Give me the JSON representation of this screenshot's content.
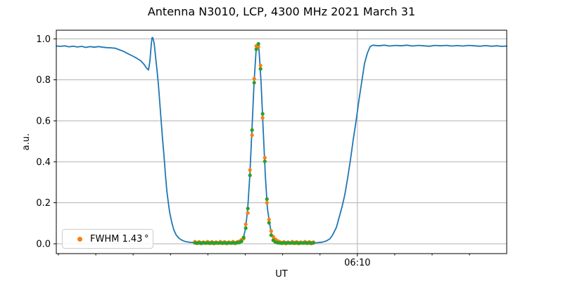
{
  "figure": {
    "title": "Antenna N3010, LCP, 4300 MHz 2021 March 31",
    "xlabel": "UT",
    "ylabel": "a.u.",
    "legend": {
      "label": "FWHM 1.43 °",
      "marker_color": "#ff7f0e"
    }
  },
  "chart_data": {
    "type": "line",
    "title": "Antenna N3010, LCP, 4300 MHz 2021 March 31",
    "xlabel": "UT",
    "ylabel": "a.u.",
    "ylim": [
      -0.048,
      1.042
    ],
    "grid": true,
    "legend_position": "lower left",
    "legend_entries": [
      "FWHM 1.43 °"
    ],
    "colors": {
      "grid": "#b0b0b0",
      "spine": "#000000",
      "line": "#1f77b4",
      "data": "#ff7f0e",
      "fit": "#2ca02c"
    },
    "y_ticks": [
      {
        "value": 0.0,
        "label": "0.0"
      },
      {
        "value": 0.2,
        "label": "0.2"
      },
      {
        "value": 0.4,
        "label": "0.4"
      },
      {
        "value": 0.6,
        "label": "0.6"
      },
      {
        "value": 0.8,
        "label": "0.8"
      },
      {
        "value": 1.0,
        "label": "1.0"
      }
    ],
    "x_axis": {
      "unit": "fraction of x-range (only one labeled time tick visible)",
      "major_ticks": [
        {
          "pos": 0.6684,
          "label": "06:10"
        }
      ],
      "minor_tick_positions": [
        0.0047,
        0.0877,
        0.1706,
        0.2536,
        0.3366,
        0.4195,
        0.5025,
        0.5855,
        0.7514,
        0.8344,
        0.9173
      ]
    },
    "series": [
      {
        "name": "drift-scan-response",
        "type": "line",
        "color": "#1f77b4",
        "points": [
          [
            0.0,
            0.965
          ],
          [
            0.0094,
            0.963
          ],
          [
            0.0188,
            0.966
          ],
          [
            0.0281,
            0.961
          ],
          [
            0.0375,
            0.964
          ],
          [
            0.0469,
            0.96
          ],
          [
            0.0563,
            0.963
          ],
          [
            0.0656,
            0.958
          ],
          [
            0.075,
            0.962
          ],
          [
            0.0844,
            0.959
          ],
          [
            0.0938,
            0.962
          ],
          [
            0.1031,
            0.959
          ],
          [
            0.1125,
            0.957
          ],
          [
            0.1219,
            0.956
          ],
          [
            0.1313,
            0.954
          ],
          [
            0.1406,
            0.946
          ],
          [
            0.15,
            0.938
          ],
          [
            0.1594,
            0.927
          ],
          [
            0.1688,
            0.917
          ],
          [
            0.1781,
            0.906
          ],
          [
            0.1875,
            0.893
          ],
          [
            0.1953,
            0.874
          ],
          [
            0.2,
            0.858
          ],
          [
            0.2047,
            0.848
          ],
          [
            0.2078,
            0.89
          ],
          [
            0.2109,
            0.975
          ],
          [
            0.2125,
            1.005
          ],
          [
            0.2141,
            1.006
          ],
          [
            0.2172,
            0.98
          ],
          [
            0.2203,
            0.915
          ],
          [
            0.2234,
            0.85
          ],
          [
            0.2266,
            0.78
          ],
          [
            0.2297,
            0.69
          ],
          [
            0.2328,
            0.6
          ],
          [
            0.2359,
            0.51
          ],
          [
            0.2391,
            0.43
          ],
          [
            0.2422,
            0.34
          ],
          [
            0.2453,
            0.26
          ],
          [
            0.2484,
            0.205
          ],
          [
            0.2516,
            0.155
          ],
          [
            0.2563,
            0.105
          ],
          [
            0.2609,
            0.068
          ],
          [
            0.2656,
            0.045
          ],
          [
            0.2719,
            0.028
          ],
          [
            0.2781,
            0.018
          ],
          [
            0.2859,
            0.011
          ],
          [
            0.2969,
            0.007
          ],
          [
            0.3125,
            0.005
          ],
          [
            0.3359,
            0.004
          ],
          [
            0.3594,
            0.004
          ],
          [
            0.3828,
            0.004
          ],
          [
            0.4031,
            0.005
          ],
          [
            0.4109,
            0.012
          ],
          [
            0.4156,
            0.031
          ],
          [
            0.4203,
            0.076
          ],
          [
            0.425,
            0.172
          ],
          [
            0.4297,
            0.334
          ],
          [
            0.4344,
            0.555
          ],
          [
            0.4391,
            0.786
          ],
          [
            0.4438,
            0.949
          ],
          [
            0.4469,
            0.978
          ],
          [
            0.45,
            0.949
          ],
          [
            0.4547,
            0.786
          ],
          [
            0.4594,
            0.555
          ],
          [
            0.4641,
            0.334
          ],
          [
            0.4688,
            0.172
          ],
          [
            0.4734,
            0.102
          ],
          [
            0.4781,
            0.042
          ],
          [
            0.4844,
            0.013
          ],
          [
            0.4922,
            0.005
          ],
          [
            0.5156,
            0.004
          ],
          [
            0.5391,
            0.004
          ],
          [
            0.5625,
            0.004
          ],
          [
            0.5781,
            0.005
          ],
          [
            0.5906,
            0.008
          ],
          [
            0.6,
            0.014
          ],
          [
            0.6078,
            0.025
          ],
          [
            0.6141,
            0.045
          ],
          [
            0.6219,
            0.08
          ],
          [
            0.6281,
            0.13
          ],
          [
            0.6344,
            0.18
          ],
          [
            0.6406,
            0.24
          ],
          [
            0.6469,
            0.32
          ],
          [
            0.6531,
            0.41
          ],
          [
            0.6594,
            0.51
          ],
          [
            0.6656,
            0.6
          ],
          [
            0.6719,
            0.7
          ],
          [
            0.6781,
            0.79
          ],
          [
            0.6844,
            0.88
          ],
          [
            0.6906,
            0.93
          ],
          [
            0.6969,
            0.962
          ],
          [
            0.7031,
            0.969
          ],
          [
            0.7156,
            0.966
          ],
          [
            0.7281,
            0.969
          ],
          [
            0.7406,
            0.965
          ],
          [
            0.7531,
            0.968
          ],
          [
            0.7656,
            0.966
          ],
          [
            0.7781,
            0.969
          ],
          [
            0.7906,
            0.965
          ],
          [
            0.8031,
            0.968
          ],
          [
            0.8156,
            0.966
          ],
          [
            0.8281,
            0.964
          ],
          [
            0.8406,
            0.968
          ],
          [
            0.8531,
            0.966
          ],
          [
            0.8656,
            0.968
          ],
          [
            0.8781,
            0.965
          ],
          [
            0.8906,
            0.967
          ],
          [
            0.9031,
            0.965
          ],
          [
            0.9156,
            0.968
          ],
          [
            0.9281,
            0.966
          ],
          [
            0.9406,
            0.964
          ],
          [
            0.9531,
            0.967
          ],
          [
            0.9656,
            0.964
          ],
          [
            0.9781,
            0.966
          ],
          [
            0.9891,
            0.963
          ],
          [
            1.0,
            0.965
          ]
        ]
      },
      {
        "name": "measured-points",
        "type": "scatter",
        "color": "#ff7f0e",
        "legend_label": "FWHM 1.43 °",
        "x_start": 0.3078,
        "x_step": 0.0047,
        "values": [
          0.01,
          0.002,
          0.009,
          0.001,
          0.008,
          0.003,
          0.01,
          0.002,
          0.009,
          0.001,
          0.008,
          0.003,
          0.01,
          0.002,
          0.009,
          0.001,
          0.008,
          0.003,
          0.01,
          0.002,
          0.009,
          0.012,
          0.02,
          0.025,
          0.095,
          0.15,
          0.36,
          0.53,
          0.805,
          0.965,
          0.96,
          0.87,
          0.615,
          0.42,
          0.2,
          0.118,
          0.062,
          0.035,
          0.022,
          0.014,
          0.01,
          0.002,
          0.009,
          0.001,
          0.008,
          0.003,
          0.01,
          0.002,
          0.009,
          0.001,
          0.008,
          0.003,
          0.01,
          0.002,
          0.009,
          0.001,
          0.008
        ]
      },
      {
        "name": "gaussian-fit-points",
        "type": "scatter",
        "color": "#2ca02c",
        "x_start": 0.3078,
        "x_step": 0.0047,
        "values": [
          0.004,
          0.004,
          0.004,
          0.004,
          0.004,
          0.004,
          0.004,
          0.004,
          0.004,
          0.004,
          0.004,
          0.004,
          0.004,
          0.004,
          0.004,
          0.004,
          0.004,
          0.004,
          0.004,
          0.004,
          0.005,
          0.006,
          0.012,
          0.031,
          0.076,
          0.172,
          0.334,
          0.555,
          0.786,
          0.949,
          0.975,
          0.853,
          0.634,
          0.402,
          0.218,
          0.102,
          0.042,
          0.017,
          0.008,
          0.005,
          0.004,
          0.004,
          0.004,
          0.004,
          0.004,
          0.004,
          0.004,
          0.004,
          0.004,
          0.004,
          0.004,
          0.004,
          0.004,
          0.004,
          0.004,
          0.004,
          0.004
        ]
      }
    ]
  }
}
